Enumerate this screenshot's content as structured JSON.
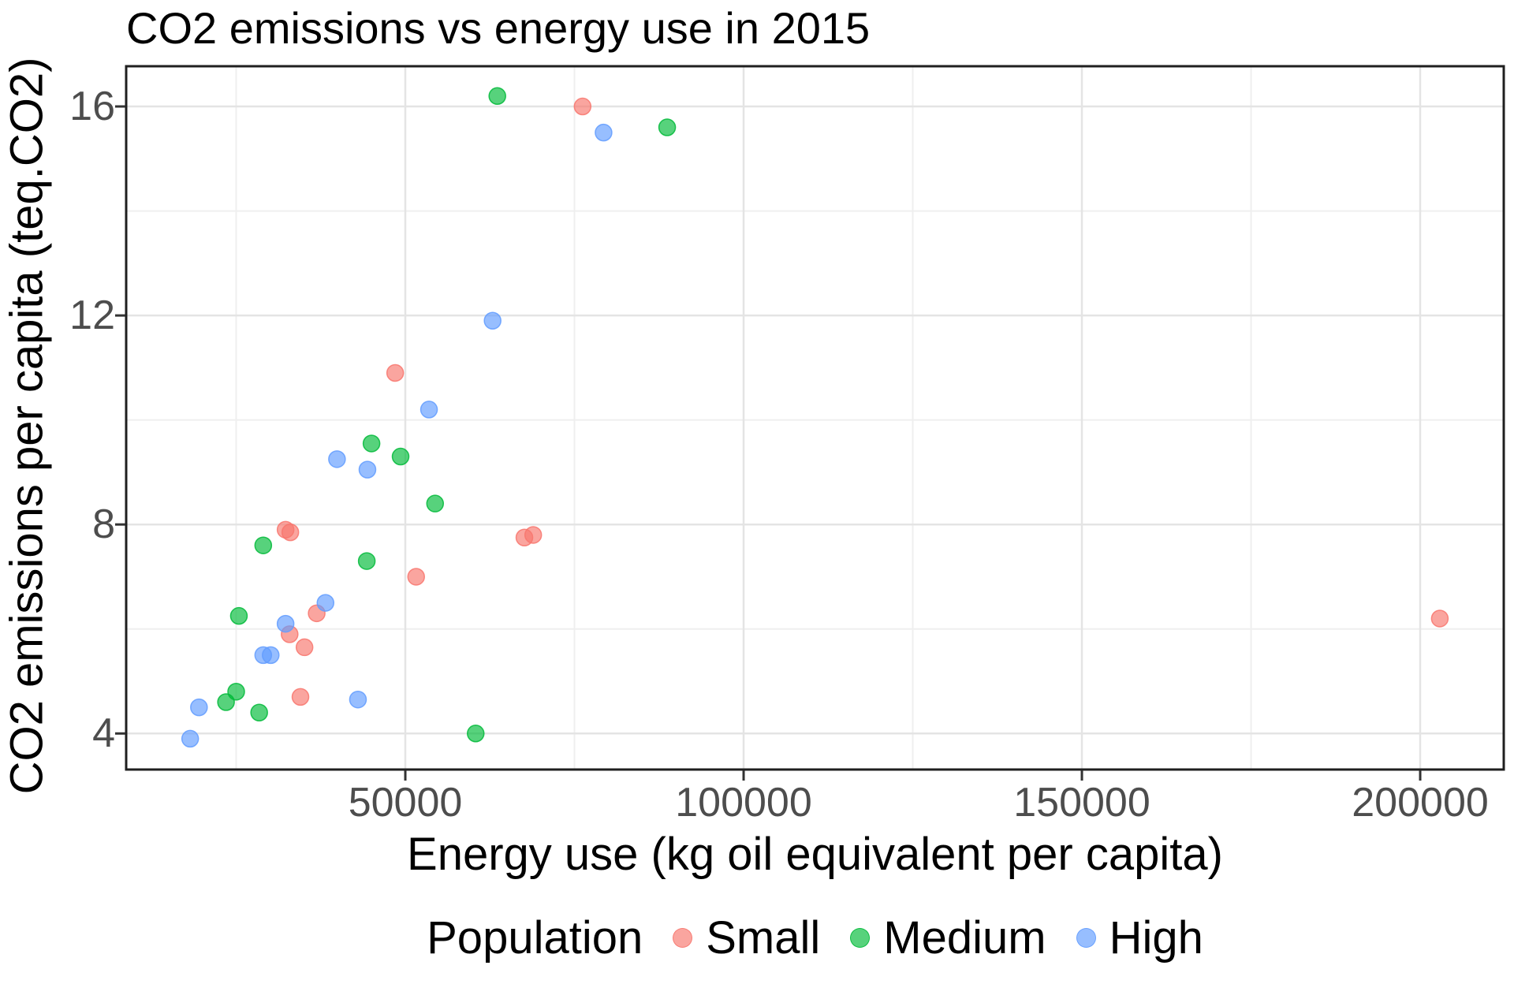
{
  "title": "CO2 emissions vs energy use in 2015",
  "axes": {
    "x": {
      "label": "Energy use (kg oil equivalent per capita)",
      "major_ticks": [
        50000,
        100000,
        150000,
        200000
      ],
      "minor_gridlines": [
        25000,
        75000,
        125000,
        175000
      ],
      "domain": [
        8740,
        212350
      ]
    },
    "y": {
      "label": "CO2 emissions per capita (teq.CO2)",
      "major_ticks": [
        4,
        8,
        12,
        16
      ],
      "minor_gridlines": [
        6,
        10,
        14
      ],
      "domain": [
        3.31,
        16.77
      ]
    }
  },
  "legend": {
    "title": "Population",
    "items": [
      {
        "label": "Small",
        "color": "#F8766D"
      },
      {
        "label": "Medium",
        "color": "#00BA38"
      },
      {
        "label": "High",
        "color": "#619CFF"
      }
    ]
  },
  "style": {
    "point_alpha": 0.66,
    "point_stroke_alpha": 0.85,
    "grid_major_color": "#E4E4E4",
    "grid_minor_color": "#EFEFEF",
    "panel_border_color": "#1F1F1F",
    "tick_color": "#333333",
    "tick_label_color": "#4D4D4D"
  },
  "chart_data": {
    "type": "scatter",
    "title": "CO2 emissions vs energy use in 2015",
    "xlabel": "Energy use (kg oil equivalent per capita)",
    "ylabel": "CO2 emissions per capita (teq.CO2)",
    "xlim": [
      8740,
      212350
    ],
    "ylim": [
      3.31,
      16.77
    ],
    "grid": true,
    "legend_position": "bottom",
    "legend_title": "Population",
    "series": [
      {
        "name": "Small",
        "color": "#F8766D",
        "points": [
          [
            76200,
            16.0
          ],
          [
            48500,
            10.9
          ],
          [
            32300,
            7.9
          ],
          [
            33000,
            7.85
          ],
          [
            67600,
            7.75
          ],
          [
            68900,
            7.8
          ],
          [
            51600,
            7.0
          ],
          [
            36900,
            6.3
          ],
          [
            32900,
            5.9
          ],
          [
            35100,
            5.65
          ],
          [
            34500,
            4.7
          ],
          [
            202900,
            6.2
          ]
        ]
      },
      {
        "name": "Medium",
        "color": "#00BA38",
        "points": [
          [
            63600,
            16.2
          ],
          [
            88700,
            15.6
          ],
          [
            45000,
            9.55
          ],
          [
            49300,
            9.3
          ],
          [
            54400,
            8.4
          ],
          [
            29000,
            7.6
          ],
          [
            44300,
            7.3
          ],
          [
            25400,
            6.25
          ],
          [
            25000,
            4.8
          ],
          [
            23500,
            4.6
          ],
          [
            28400,
            4.4
          ],
          [
            60400,
            4.0
          ]
        ]
      },
      {
        "name": "High",
        "color": "#619CFF",
        "points": [
          [
            79300,
            15.5
          ],
          [
            62900,
            11.9
          ],
          [
            53500,
            10.2
          ],
          [
            39900,
            9.25
          ],
          [
            44400,
            9.05
          ],
          [
            38200,
            6.5
          ],
          [
            32300,
            6.1
          ],
          [
            29000,
            5.5
          ],
          [
            30100,
            5.5
          ],
          [
            43000,
            4.65
          ],
          [
            19500,
            4.5
          ],
          [
            18200,
            3.9
          ]
        ]
      }
    ]
  }
}
